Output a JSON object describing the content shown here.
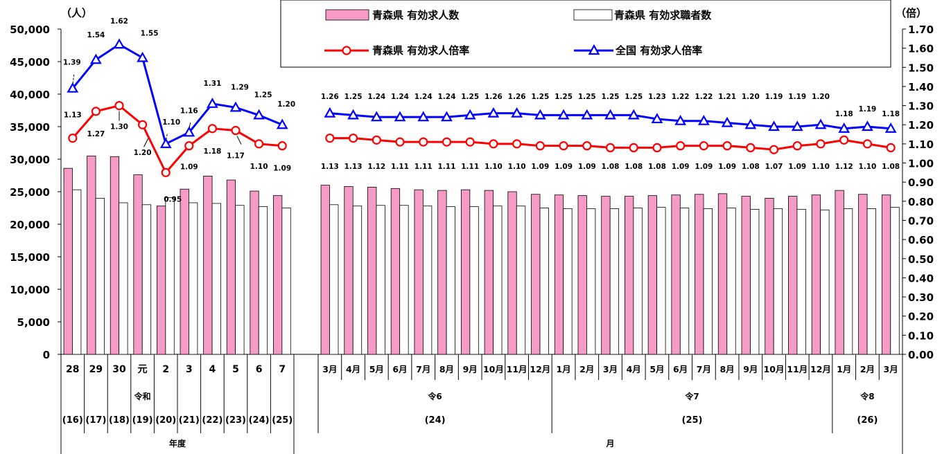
{
  "chart_data": {
    "type": "bar",
    "left_unit": "（人）",
    "right_unit": "（倍）",
    "left_axis": {
      "min": 0,
      "max": 50000,
      "step": 5000,
      "ticks": [
        "0",
        "5,000",
        "10,000",
        "15,000",
        "20,000",
        "25,000",
        "30,000",
        "35,000",
        "40,000",
        "45,000",
        "50,000"
      ]
    },
    "right_axis": {
      "min": 0,
      "max": 1.7,
      "step": 0.1,
      "ticks": [
        "0.00",
        "0.10",
        "0.20",
        "0.30",
        "0.40",
        "0.50",
        "0.60",
        "0.70",
        "0.80",
        "0.90",
        "1.00",
        "1.10",
        "1.20",
        "1.30",
        "1.40",
        "1.50",
        "1.60",
        "1.70"
      ]
    },
    "legend": [
      {
        "name": "青森県 有効求人数",
        "kind": "bar",
        "color": "#f59bc6"
      },
      {
        "name": "青森県 有効求職者数",
        "kind": "bar",
        "color": "#ffffff"
      },
      {
        "name": "青森県 有効求人倍率",
        "kind": "line",
        "marker": "circle",
        "color": "#ff0000"
      },
      {
        "name": "全国 有効求人倍率",
        "kind": "line",
        "marker": "triangle",
        "color": "#0000ff"
      }
    ],
    "left_group": {
      "categories": [
        "28",
        "29",
        "30",
        "元",
        "2",
        "3",
        "4",
        "5",
        "6",
        "7"
      ],
      "era_sub_labels": [
        "",
        "",
        "",
        "令和",
        "",
        "",
        "",
        "",
        "",
        ""
      ],
      "year_labels": [
        "(16)",
        "(17)",
        "(18)",
        "(19)",
        "(20)",
        "(21)",
        "(22)",
        "(23)",
        "(24)",
        "(25)"
      ],
      "footer": "年度",
      "openings": [
        28600,
        30500,
        30400,
        27600,
        22800,
        25400,
        27400,
        26800,
        25100,
        24400
      ],
      "seekers": [
        25300,
        24000,
        23300,
        23000,
        24100,
        23300,
        23200,
        22900,
        22700,
        22500
      ],
      "aomori_ratio": [
        1.13,
        1.27,
        1.3,
        1.2,
        0.95,
        1.09,
        1.18,
        1.17,
        1.1,
        1.09
      ],
      "national_ratio": [
        1.39,
        1.54,
        1.62,
        1.55,
        1.1,
        1.16,
        1.31,
        1.29,
        1.25,
        1.2
      ]
    },
    "right_group": {
      "categories": [
        "3月",
        "4月",
        "5月",
        "6月",
        "7月",
        "8月",
        "9月",
        "10月",
        "11月",
        "12月",
        "1月",
        "2月",
        "3月",
        "4月",
        "5月",
        "6月",
        "7月",
        "8月",
        "9月",
        "10月",
        "11月",
        "12月",
        "1月",
        "2月",
        "3月"
      ],
      "eras": [
        {
          "label": "令6",
          "year": "(24)",
          "from": 0,
          "to": 9
        },
        {
          "label": "令7",
          "year": "(25)",
          "from": 10,
          "to": 21
        },
        {
          "label": "令8",
          "year": "(26)",
          "from": 22,
          "to": 24
        }
      ],
      "footer": "月",
      "openings": [
        26000,
        25800,
        25700,
        25500,
        25300,
        25200,
        25300,
        25200,
        25000,
        24600,
        24500,
        24400,
        24300,
        24300,
        24400,
        24500,
        24600,
        24700,
        24300,
        24000,
        24300,
        24500,
        25200,
        24600,
        24500
      ],
      "seekers": [
        23000,
        22800,
        22900,
        22900,
        22800,
        22700,
        22700,
        22800,
        22800,
        22500,
        22400,
        22400,
        22400,
        22500,
        22600,
        22500,
        22400,
        22500,
        22300,
        22400,
        22300,
        22200,
        22400,
        22400,
        22600
      ],
      "aomori_ratio": [
        1.13,
        1.13,
        1.12,
        1.11,
        1.11,
        1.11,
        1.11,
        1.1,
        1.1,
        1.09,
        1.09,
        1.09,
        1.08,
        1.08,
        1.08,
        1.09,
        1.09,
        1.09,
        1.08,
        1.07,
        1.09,
        1.1,
        1.12,
        1.1,
        1.08
      ],
      "national_ratio": [
        1.26,
        1.25,
        1.24,
        1.24,
        1.24,
        1.24,
        1.25,
        1.26,
        1.26,
        1.25,
        1.25,
        1.25,
        1.25,
        1.25,
        1.23,
        1.22,
        1.22,
        1.21,
        1.2,
        1.19,
        1.19,
        1.2,
        1.18,
        1.19,
        1.18
      ]
    }
  }
}
